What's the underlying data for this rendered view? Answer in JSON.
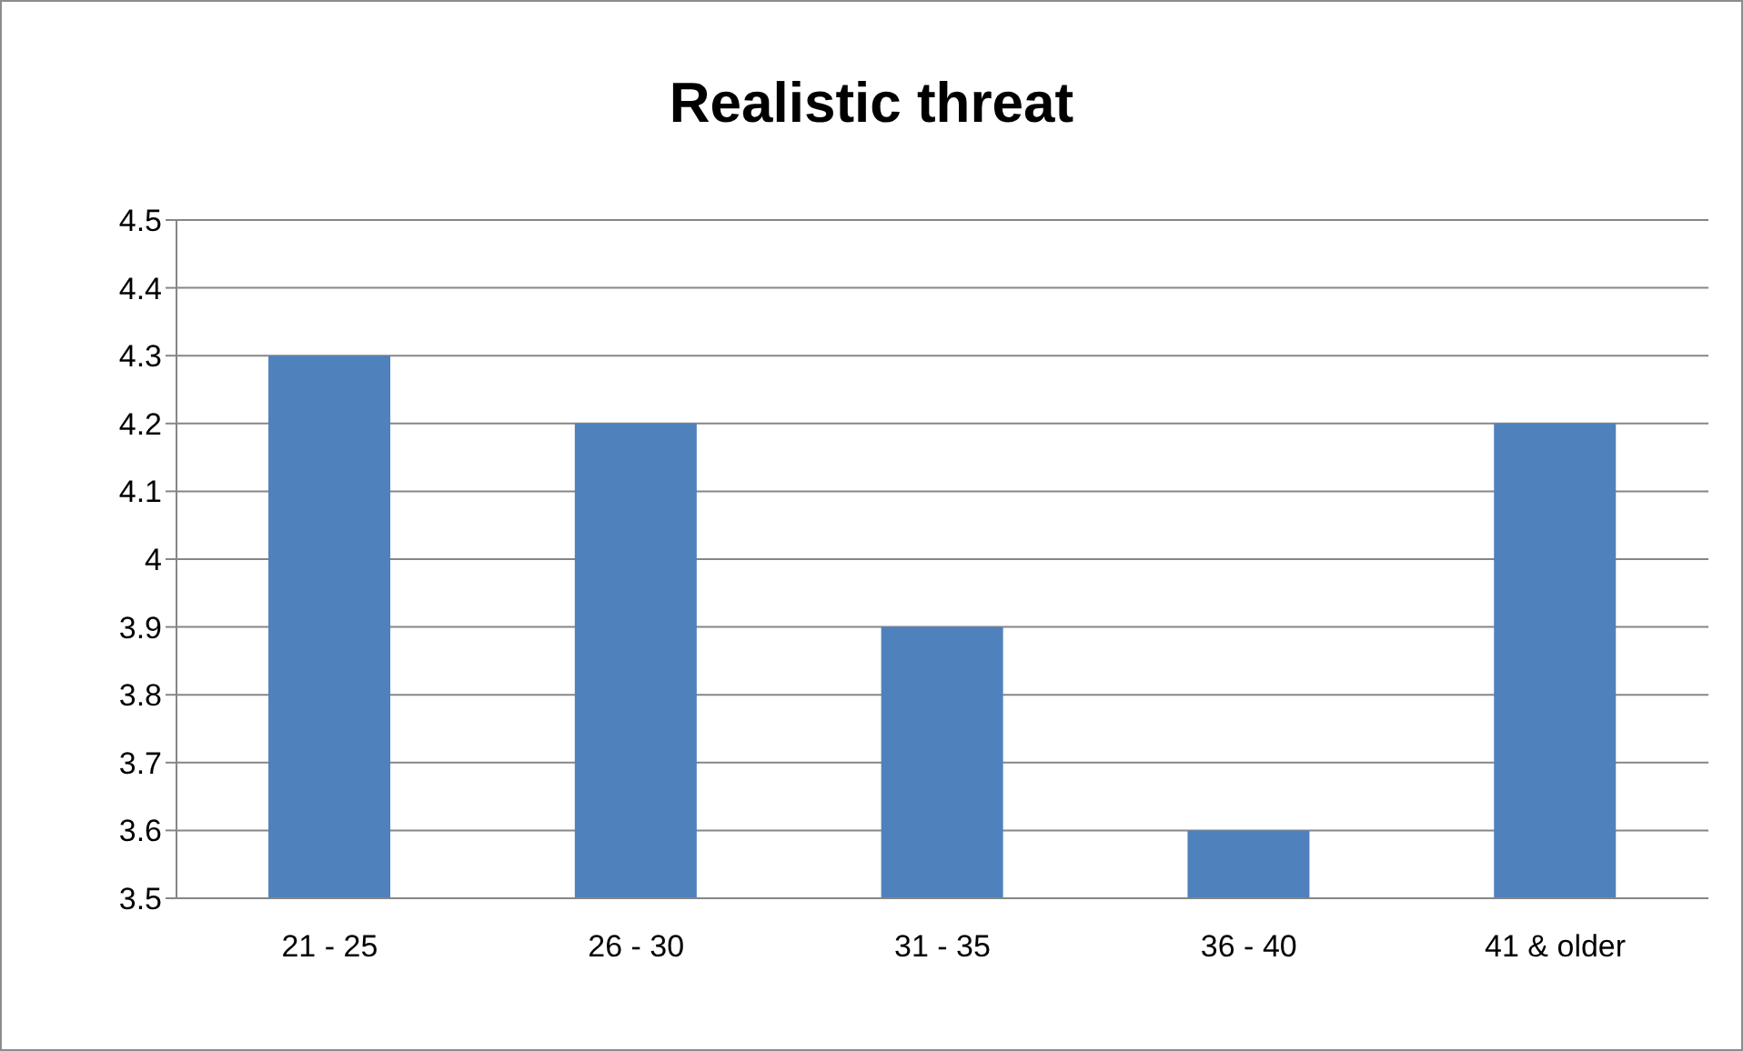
{
  "chart_data": {
    "type": "bar",
    "title": "Realistic threat",
    "categories": [
      "21 - 25",
      "26 - 30",
      "31 - 35",
      "36 - 40",
      "41 & older"
    ],
    "values": [
      4.3,
      4.2,
      3.9,
      3.6,
      4.2
    ],
    "color": "#4f81bd",
    "ylim": [
      3.5,
      4.5
    ],
    "yticks": [
      3.5,
      3.6,
      3.7,
      3.8,
      3.9,
      4,
      4.1,
      4.2,
      4.3,
      4.4,
      4.5
    ],
    "grid": "y"
  }
}
